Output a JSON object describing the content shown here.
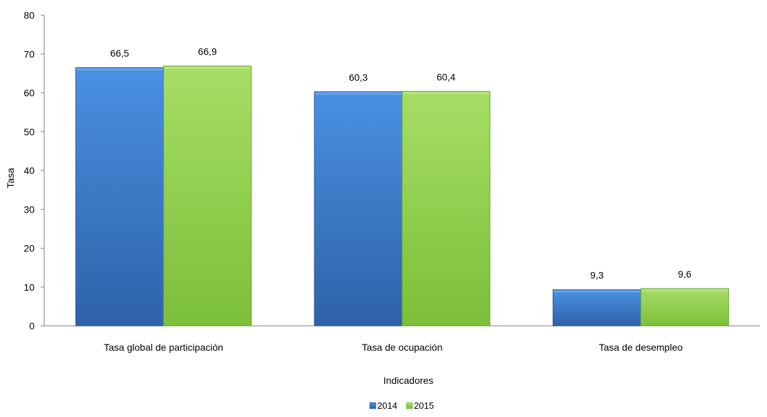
{
  "chart_data": {
    "type": "bar",
    "title": "",
    "xlabel": "Indicadores",
    "ylabel": "Tasa",
    "ylim": [
      0,
      80
    ],
    "yticks": [
      0,
      10,
      20,
      30,
      40,
      50,
      60,
      70,
      80
    ],
    "categories": [
      "Tasa global de participación",
      "Tasa de ocupación",
      "Tasa de desempleo"
    ],
    "series": [
      {
        "name": "2014",
        "color": "#3f7fd4",
        "values": [
          66.5,
          60.3,
          9.3
        ],
        "labels": [
          "66,5",
          "60,3",
          "9,3"
        ]
      },
      {
        "name": "2015",
        "color": "#92d050",
        "values": [
          66.9,
          60.4,
          9.6
        ],
        "labels": [
          "66,9",
          "60,4",
          "9,6"
        ]
      }
    ],
    "legend_position": "bottom",
    "grid": false
  }
}
